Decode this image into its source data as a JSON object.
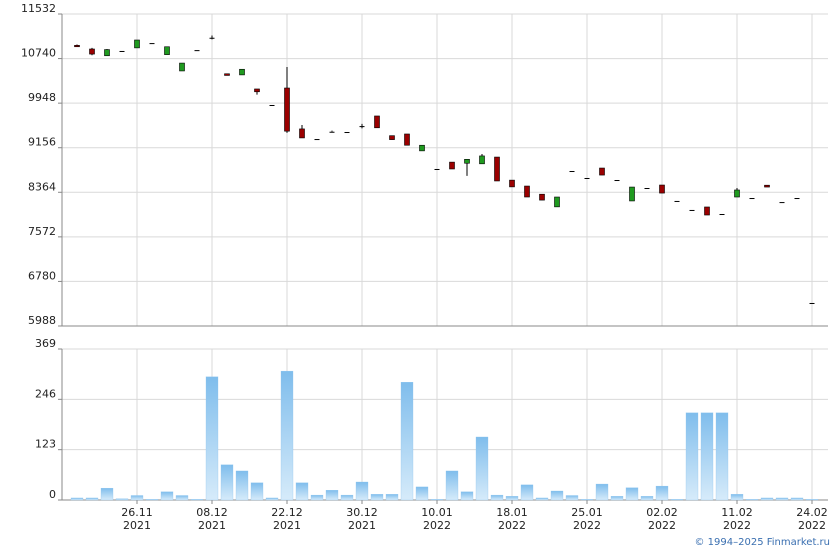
{
  "chart_data": [
    {
      "type": "candlestick",
      "open": [
        10975,
        10910,
        10790,
        10875,
        10930,
        11015,
        10810,
        10520,
        10890,
        11110,
        10470,
        10450,
        10200,
        9915,
        10217,
        9490,
        9310,
        9440,
        9435,
        9540,
        9720,
        9370,
        9400,
        9100,
        8778,
        8900,
        8880,
        8870,
        8990,
        8580,
        8475,
        8330,
        8105,
        8742,
        8618,
        8795,
        8582,
        8210,
        8440,
        8493,
        8210,
        8050,
        8103,
        7978,
        8280,
        8262,
        8490,
        8190,
        8262,
        6397
      ],
      "high": [
        10990,
        10930,
        10910,
        10875,
        11070,
        11015,
        10950,
        10660,
        10890,
        11150,
        10470,
        10550,
        10200,
        9915,
        10590,
        9560,
        9310,
        9460,
        9435,
        9580,
        9720,
        9370,
        9400,
        9200,
        8778,
        8900,
        8950,
        9045,
        8990,
        8580,
        8475,
        8330,
        8280,
        8742,
        8618,
        8795,
        8582,
        8457,
        8440,
        8493,
        8210,
        8050,
        8103,
        7978,
        8440,
        8262,
        8490,
        8190,
        8262,
        6397
      ],
      "low": [
        10950,
        10800,
        10790,
        10875,
        10930,
        11015,
        10810,
        10520,
        10890,
        11080,
        10440,
        10450,
        10100,
        9915,
        9420,
        9330,
        9310,
        9440,
        9435,
        9500,
        9510,
        9300,
        9200,
        9100,
        8778,
        8778,
        8655,
        8870,
        8565,
        8460,
        8280,
        8225,
        8105,
        8742,
        8618,
        8670,
        8582,
        8210,
        8440,
        8350,
        8210,
        8050,
        7960,
        7978,
        8280,
        8262,
        8457,
        8190,
        8262,
        6397
      ],
      "close": [
        10950,
        10820,
        10900,
        10875,
        11070,
        11015,
        10950,
        10660,
        10890,
        11110,
        10440,
        10550,
        10150,
        9915,
        9450,
        9330,
        9310,
        9440,
        9435,
        9540,
        9510,
        9300,
        9200,
        9200,
        8778,
        8778,
        8950,
        9010,
        8565,
        8460,
        8280,
        8225,
        8280,
        8742,
        8618,
        8670,
        8582,
        8457,
        8440,
        8350,
        8210,
        8050,
        7960,
        7978,
        8405,
        8262,
        8457,
        8190,
        8262,
        6397
      ],
      "up_color": "#1f9a1f",
      "down_color": "#9b0000",
      "ylim": [
        5988,
        11532
      ],
      "yticks": [
        5988,
        6780,
        7572,
        8364,
        9156,
        9948,
        10740,
        11532
      ],
      "grid": true
    },
    {
      "type": "bar",
      "categories": [
        null,
        null,
        null,
        null,
        "26.11",
        null,
        null,
        null,
        null,
        "08.12",
        null,
        null,
        null,
        null,
        "22.12",
        null,
        null,
        null,
        null,
        "30.12",
        null,
        null,
        null,
        null,
        "10.01",
        null,
        null,
        null,
        null,
        "18.01",
        null,
        null,
        null,
        null,
        "25.01",
        null,
        null,
        null,
        null,
        "02.02",
        null,
        null,
        null,
        null,
        "11.02",
        null,
        null,
        null,
        null,
        "24.02"
      ],
      "category_years": [
        null,
        null,
        null,
        null,
        "2021",
        null,
        null,
        null,
        null,
        "2021",
        null,
        null,
        null,
        null,
        "2021",
        null,
        null,
        null,
        null,
        "2021",
        null,
        null,
        null,
        null,
        "2022",
        null,
        null,
        null,
        null,
        "2022",
        null,
        null,
        null,
        null,
        "2022",
        null,
        null,
        null,
        null,
        "2022",
        null,
        null,
        null,
        null,
        "2022",
        null,
        null,
        null,
        null,
        "2022"
      ],
      "values": [
        5,
        5,
        29,
        3,
        11,
        2,
        20,
        11,
        2,
        301,
        86,
        71,
        42,
        5,
        315,
        42,
        12,
        24,
        12,
        44,
        14,
        14,
        288,
        32,
        2,
        71,
        20,
        154,
        12,
        9,
        37,
        5,
        22,
        11,
        2,
        39,
        9,
        30,
        9,
        34,
        2,
        213,
        213,
        213,
        14,
        2,
        5,
        5,
        5,
        2
      ],
      "color": "#8cc4ee",
      "ylim": [
        0,
        369
      ],
      "yticks": [
        0,
        123,
        246,
        369
      ],
      "grid": true
    }
  ],
  "footer": "© 1994–2025 Finmarket.ru"
}
